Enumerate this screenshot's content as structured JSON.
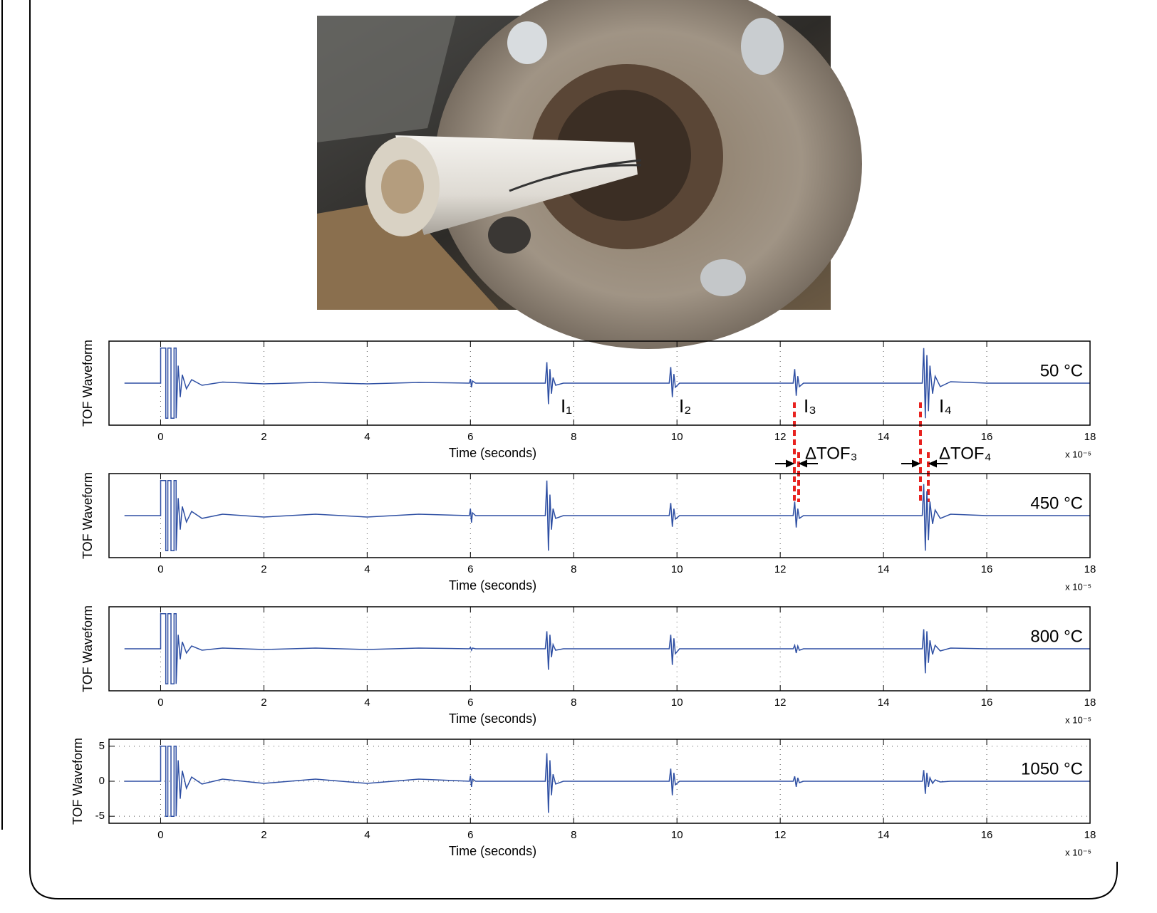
{
  "chart_data": [
    {
      "type": "line",
      "label": "50 °C",
      "xlabel": "Time (seconds)",
      "ylabel": "TOF Waveform",
      "xscale_label": "x 10⁻⁵",
      "annotations": [
        "I₁",
        "I₂",
        "I₃",
        "I₄",
        "ΔTOF₃",
        "ΔTOF₄"
      ],
      "xlim": [
        -1,
        18
      ],
      "ylim": [
        -6,
        6
      ],
      "xticks": [
        0,
        2,
        4,
        6,
        8,
        10,
        12,
        14,
        16,
        18
      ],
      "grid": true,
      "x": [
        -0.7,
        0,
        0,
        0.02,
        0.1,
        0.1,
        0.14,
        0.14,
        0.2,
        0.2,
        0.26,
        0.26,
        0.3,
        0.3,
        0.34,
        0.38,
        0.42,
        0.5,
        0.6,
        0.8,
        1.2,
        2,
        3,
        4,
        5,
        5.98,
        6.0,
        6.02,
        6.04,
        6.1,
        7.45,
        7.48,
        7.51,
        7.54,
        7.57,
        7.6,
        7.65,
        7.8,
        9.85,
        9.88,
        9.91,
        9.94,
        9.97,
        10.05,
        12.25,
        12.28,
        12.31,
        12.34,
        12.37,
        12.45,
        14.75,
        14.78,
        14.81,
        14.84,
        14.87,
        14.9,
        14.95,
        15.0,
        15.1,
        15.3,
        16.0,
        17,
        18
      ],
      "series": [
        {
          "name": "50 °C",
          "color": "#2e4fa3",
          "values": [
            0,
            0,
            5,
            5,
            5,
            -5,
            -5,
            5,
            5,
            -5,
            -5,
            5,
            5,
            -5,
            2.5,
            -2,
            1.2,
            -0.8,
            0.5,
            -0.3,
            0.15,
            -0.1,
            0.1,
            -0.1,
            0.1,
            0,
            0.6,
            -0.6,
            0.3,
            0,
            0,
            3,
            -3,
            2,
            -1.5,
            0.8,
            -0.3,
            0,
            0,
            2.3,
            -2,
            1.3,
            -0.6,
            0,
            0,
            2,
            -1.8,
            1,
            -0.5,
            0,
            0,
            5,
            -5,
            4,
            -4,
            2.5,
            -1.5,
            1,
            -0.5,
            0.2,
            0,
            0,
            0
          ]
        }
      ]
    },
    {
      "type": "line",
      "label": "450 °C",
      "xlabel": "Time (seconds)",
      "ylabel": "TOF Waveform",
      "xscale_label": "x 10⁻⁵",
      "xlim": [
        -1,
        18
      ],
      "ylim": [
        -6,
        6
      ],
      "xticks": [
        0,
        2,
        4,
        6,
        8,
        10,
        12,
        14,
        16,
        18
      ],
      "grid": true,
      "x": [
        -0.7,
        0,
        0,
        0.02,
        0.1,
        0.1,
        0.14,
        0.14,
        0.2,
        0.2,
        0.26,
        0.26,
        0.3,
        0.3,
        0.34,
        0.38,
        0.42,
        0.5,
        0.6,
        0.8,
        1.2,
        2,
        3,
        4,
        5,
        5.98,
        6.0,
        6.02,
        6.04,
        6.1,
        7.45,
        7.48,
        7.51,
        7.54,
        7.57,
        7.6,
        7.65,
        7.8,
        9.85,
        9.88,
        9.91,
        9.94,
        9.97,
        10.05,
        12.25,
        12.28,
        12.31,
        12.34,
        12.37,
        12.45,
        14.75,
        14.78,
        14.81,
        14.84,
        14.87,
        14.9,
        14.95,
        15.0,
        15.1,
        15.3,
        16.0,
        17,
        18
      ],
      "series": [
        {
          "name": "450 °C",
          "color": "#2e4fa3",
          "values": [
            0,
            0,
            5,
            5,
            5,
            -5,
            -5,
            5,
            5,
            -5,
            -5,
            5,
            5,
            -5,
            2.5,
            -2,
            1.3,
            -0.9,
            0.6,
            -0.4,
            0.2,
            -0.2,
            0.2,
            -0.2,
            0.2,
            0,
            1,
            -1,
            0.4,
            0,
            0,
            5,
            -5,
            3,
            -2,
            1,
            -0.4,
            0,
            0,
            1.8,
            -1.6,
            1,
            -0.5,
            0,
            0,
            2,
            -1.7,
            1,
            -0.4,
            0,
            0,
            4.5,
            -5,
            3.5,
            -3.5,
            2,
            -1.2,
            0.8,
            -0.4,
            0.2,
            0,
            0,
            0
          ]
        }
      ]
    },
    {
      "type": "line",
      "label": "800 °C",
      "xlabel": "Time (seconds)",
      "ylabel": "TOF Waveform",
      "xscale_label": "x 10⁻⁵",
      "xlim": [
        -1,
        18
      ],
      "ylim": [
        -6,
        6
      ],
      "xticks": [
        0,
        2,
        4,
        6,
        8,
        10,
        12,
        14,
        16,
        18
      ],
      "grid": true,
      "x": [
        -0.7,
        0,
        0,
        0.02,
        0.1,
        0.1,
        0.14,
        0.14,
        0.2,
        0.2,
        0.26,
        0.26,
        0.3,
        0.3,
        0.34,
        0.38,
        0.42,
        0.5,
        0.6,
        0.8,
        1.2,
        2,
        3,
        4,
        5,
        5.98,
        6.0,
        6.02,
        6.04,
        6.1,
        7.45,
        7.48,
        7.51,
        7.54,
        7.57,
        7.6,
        7.65,
        7.8,
        9.85,
        9.88,
        9.91,
        9.94,
        9.97,
        10.05,
        12.25,
        12.28,
        12.31,
        12.34,
        12.37,
        12.45,
        14.75,
        14.78,
        14.81,
        14.84,
        14.87,
        14.9,
        14.95,
        15.0,
        15.1,
        15.3,
        16.0,
        17,
        18
      ],
      "series": [
        {
          "name": "800 °C",
          "color": "#2e4fa3",
          "values": [
            0,
            0,
            5,
            5,
            5,
            -5,
            -5,
            5,
            5,
            -5,
            -5,
            5,
            5,
            -5,
            2,
            -1.5,
            1,
            -0.6,
            0.4,
            -0.2,
            0.1,
            -0.1,
            0.1,
            -0.1,
            0.1,
            0,
            0.2,
            -0.2,
            0.1,
            0,
            0,
            2.5,
            -3,
            2,
            -1.2,
            0.6,
            -0.2,
            0,
            0,
            2,
            -2.3,
            1.5,
            -0.7,
            0,
            0,
            0.5,
            -0.6,
            0.4,
            -0.2,
            0,
            0,
            2.8,
            -3.5,
            2.5,
            -2,
            1.2,
            -0.8,
            0.5,
            -0.3,
            0.1,
            0,
            0,
            0
          ]
        }
      ]
    },
    {
      "type": "line",
      "label": "1050 °C",
      "xlabel": "Time (seconds)",
      "ylabel": "TOF Waveform",
      "xscale_label": "x 10⁻⁵",
      "xlim": [
        -1,
        18
      ],
      "ylim": [
        -6,
        6
      ],
      "xticks": [
        0,
        2,
        4,
        6,
        8,
        10,
        12,
        14,
        16,
        18
      ],
      "yticks": [
        -5,
        0,
        5
      ],
      "grid": true,
      "x": [
        -0.7,
        0,
        0,
        0.02,
        0.1,
        0.1,
        0.14,
        0.14,
        0.2,
        0.2,
        0.26,
        0.26,
        0.3,
        0.3,
        0.34,
        0.38,
        0.42,
        0.5,
        0.6,
        0.8,
        1.2,
        2,
        3,
        4,
        5,
        5.98,
        6.0,
        6.02,
        6.04,
        6.1,
        7.45,
        7.48,
        7.51,
        7.54,
        7.57,
        7.6,
        7.65,
        7.8,
        9.85,
        9.88,
        9.91,
        9.94,
        9.97,
        10.05,
        12.25,
        12.28,
        12.31,
        12.34,
        12.37,
        12.45,
        14.75,
        14.78,
        14.81,
        14.84,
        14.87,
        14.9,
        14.95,
        15.0,
        15.1,
        15.3,
        16.0,
        17,
        18
      ],
      "series": [
        {
          "name": "1050 °C",
          "color": "#2e4fa3",
          "values": [
            0,
            0,
            5,
            5,
            5,
            -5,
            -5,
            5,
            5,
            -5,
            -5,
            5,
            5,
            -5,
            3,
            -2.5,
            1.5,
            -1,
            0.6,
            -0.4,
            0.3,
            -0.3,
            0.3,
            -0.3,
            0.3,
            0,
            0.8,
            -0.8,
            0.3,
            0,
            0,
            4,
            -4.5,
            3,
            -2,
            1,
            -0.4,
            0,
            0,
            1.8,
            -2,
            1.2,
            -0.5,
            0,
            0,
            0.7,
            -0.8,
            0.5,
            -0.2,
            0,
            0,
            1.6,
            -1.8,
            1.2,
            -0.8,
            0.5,
            -0.3,
            0.2,
            -0.1,
            0,
            0,
            0,
            0
          ]
        }
      ]
    }
  ]
}
